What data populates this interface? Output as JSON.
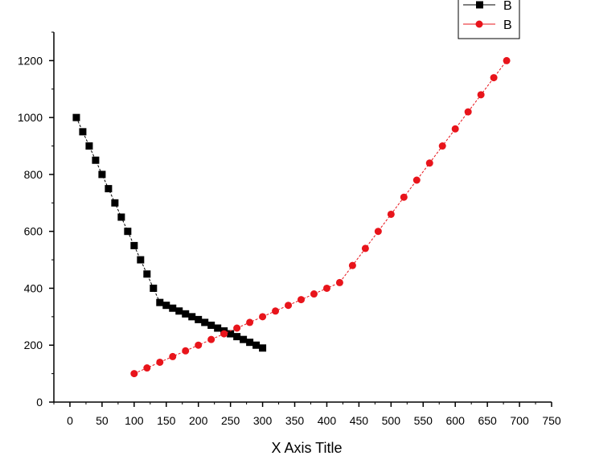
{
  "chart_data": {
    "type": "line",
    "title": "",
    "xlabel": "X Axis Title",
    "ylabel": "",
    "xlim": [
      -25,
      750
    ],
    "ylim": [
      0,
      1300
    ],
    "x_ticks": [
      0,
      50,
      100,
      150,
      200,
      250,
      300,
      350,
      400,
      450,
      500,
      550,
      600,
      650,
      700,
      750
    ],
    "y_ticks": [
      0,
      200,
      400,
      600,
      800,
      1000,
      1200
    ],
    "grid": false,
    "legend_position": "top-right",
    "series": [
      {
        "name": "B",
        "color": "#000000",
        "marker": "square",
        "line": "dashed",
        "x": [
          10,
          20,
          30,
          40,
          50,
          60,
          70,
          80,
          90,
          100,
          110,
          120,
          130,
          140,
          150,
          160,
          170,
          180,
          190,
          200,
          210,
          220,
          230,
          240,
          250,
          260,
          270,
          280,
          290,
          300
        ],
        "y": [
          1000,
          950,
          900,
          850,
          800,
          750,
          700,
          650,
          600,
          550,
          500,
          450,
          400,
          350,
          340,
          330,
          320,
          310,
          300,
          290,
          280,
          270,
          260,
          250,
          240,
          230,
          220,
          210,
          200,
          190
        ]
      },
      {
        "name": "B",
        "color": "#e8141b",
        "marker": "circle",
        "line": "dashed",
        "x": [
          100,
          120,
          140,
          160,
          180,
          200,
          220,
          240,
          260,
          280,
          300,
          320,
          340,
          360,
          380,
          400,
          420,
          440,
          460,
          480,
          500,
          520,
          540,
          560,
          580,
          600,
          620,
          640,
          660,
          680
        ],
        "y": [
          100,
          120,
          140,
          160,
          180,
          200,
          220,
          240,
          260,
          280,
          300,
          320,
          340,
          360,
          380,
          400,
          420,
          480,
          540,
          600,
          660,
          720,
          780,
          840,
          900,
          960,
          1020,
          1080,
          1140,
          1200
        ]
      }
    ]
  }
}
